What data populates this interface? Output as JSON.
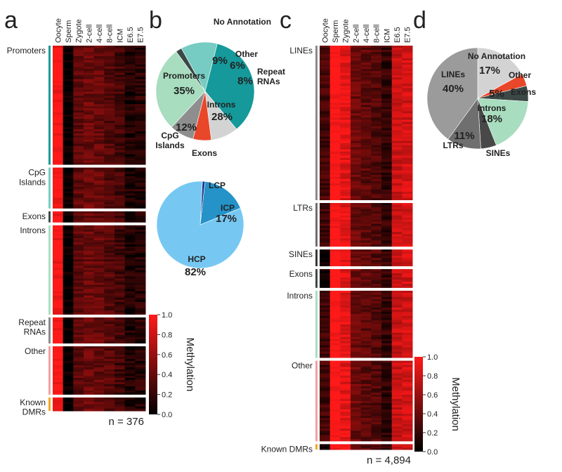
{
  "figure": {
    "panel_labels": [
      "a",
      "b",
      "c",
      "d"
    ],
    "stages": [
      "Oocyte",
      "Sperm",
      "Zygote",
      "2-cell",
      "4-cell",
      "8-cell",
      "ICM",
      "E6.5",
      "E7.5"
    ],
    "colorbar": {
      "label": "Methylation",
      "ticks": [
        "1.0",
        "0.8",
        "0.6",
        "0.4",
        "0.2",
        "0.0"
      ],
      "colors": [
        "#000000",
        "#ff1a1a"
      ]
    }
  },
  "chart_data": [
    {
      "id": "a",
      "type": "heatmap",
      "columns": [
        "Oocyte",
        "Sperm",
        "Zygote",
        "2-cell",
        "4-cell",
        "8-cell",
        "ICM",
        "E6.5",
        "E7.5"
      ],
      "row_groups": [
        {
          "label": "Promoters",
          "color": "#1a9b9b",
          "rows": 160
        },
        {
          "label": "CpG\nIslands",
          "color": "#76cdc4",
          "rows": 55
        },
        {
          "label": "Exons",
          "color": "#3c4a46",
          "rows": 15
        },
        {
          "label": "Introns",
          "color": "#a9dec3",
          "rows": 120
        },
        {
          "label": "Repeat\nRNAs",
          "color": "#8c8c8c",
          "rows": 35
        },
        {
          "label": "Other",
          "color": "#f2a0a0",
          "rows": 65
        },
        {
          "label": "Known\nDMRs",
          "color": "#f5a623",
          "rows": 18
        }
      ],
      "value_range": [
        0.0,
        1.0
      ],
      "count_label": "n = 376"
    },
    {
      "id": "b-top",
      "type": "pie",
      "slices": [
        {
          "label": "Promoters",
          "value": 35,
          "color": "#15999a"
        },
        {
          "label": "No Annotation",
          "value": 9,
          "color": "#d3d3d3"
        },
        {
          "label": "Other",
          "value": 6,
          "color": "#e9472a"
        },
        {
          "label": "Repeat\nRNAs",
          "value": 8,
          "color": "#8e8e8e"
        },
        {
          "label": "Introns",
          "value": 28,
          "color": "#a8ddbf"
        },
        {
          "label": "Exons",
          "value": 2,
          "color": "#3b4845"
        },
        {
          "label": "CpG\nIslands",
          "value": 12,
          "color": "#76ccc3"
        }
      ],
      "slice_texts": [
        "35%",
        "9%",
        "6%",
        "8%",
        "28%",
        "12%"
      ]
    },
    {
      "id": "b-bottom",
      "type": "pie",
      "slices": [
        {
          "label": "LCP",
          "value": 1,
          "color": "#1d2f8f"
        },
        {
          "label": "ICP",
          "value": 17,
          "color": "#2592c8"
        },
        {
          "label": "HCP",
          "value": 82,
          "color": "#76c8f2"
        }
      ],
      "slice_texts": [
        "17%",
        "82%"
      ]
    },
    {
      "id": "c",
      "type": "heatmap",
      "columns": [
        "Oocyte",
        "Sperm",
        "Zygote",
        "2-cell",
        "4-cell",
        "8-cell",
        "ICM",
        "E6.5",
        "E7.5"
      ],
      "row_groups": [
        {
          "label": "LINEs",
          "color": "#8a8a8a",
          "rows": 230
        },
        {
          "label": "LTRs",
          "color": "#6e6e6e",
          "rows": 65
        },
        {
          "label": "SINEs",
          "color": "#3a3a3a",
          "rows": 25
        },
        {
          "label": "Exons",
          "color": "#3c4a46",
          "rows": 28
        },
        {
          "label": "Introns",
          "color": "#a9dec3",
          "rows": 100
        },
        {
          "label": "Other",
          "color": "#f2a0a0",
          "rows": 120
        },
        {
          "label": "Known DMRs",
          "color": "#f5a623",
          "rows": 8
        }
      ],
      "value_range": [
        0.0,
        1.0
      ],
      "count_label": "n = 4,894"
    },
    {
      "id": "d",
      "type": "pie",
      "slices": [
        {
          "label": "No Annotation",
          "value": 17,
          "color": "#d3d3d3"
        },
        {
          "label": "Other",
          "value": 4,
          "color": "#e9472a"
        },
        {
          "label": "Exons",
          "value": 5,
          "color": "#3b4845"
        },
        {
          "label": "Introns",
          "value": 18,
          "color": "#a8ddbf"
        },
        {
          "label": "SINEs",
          "value": 5,
          "color": "#484848"
        },
        {
          "label": "LTRs",
          "value": 11,
          "color": "#6f6f6f"
        },
        {
          "label": "LINEs",
          "value": 40,
          "color": "#9b9b9b"
        }
      ],
      "slice_texts": [
        "17%",
        "5%",
        "18%",
        "11%",
        "40%"
      ]
    }
  ]
}
